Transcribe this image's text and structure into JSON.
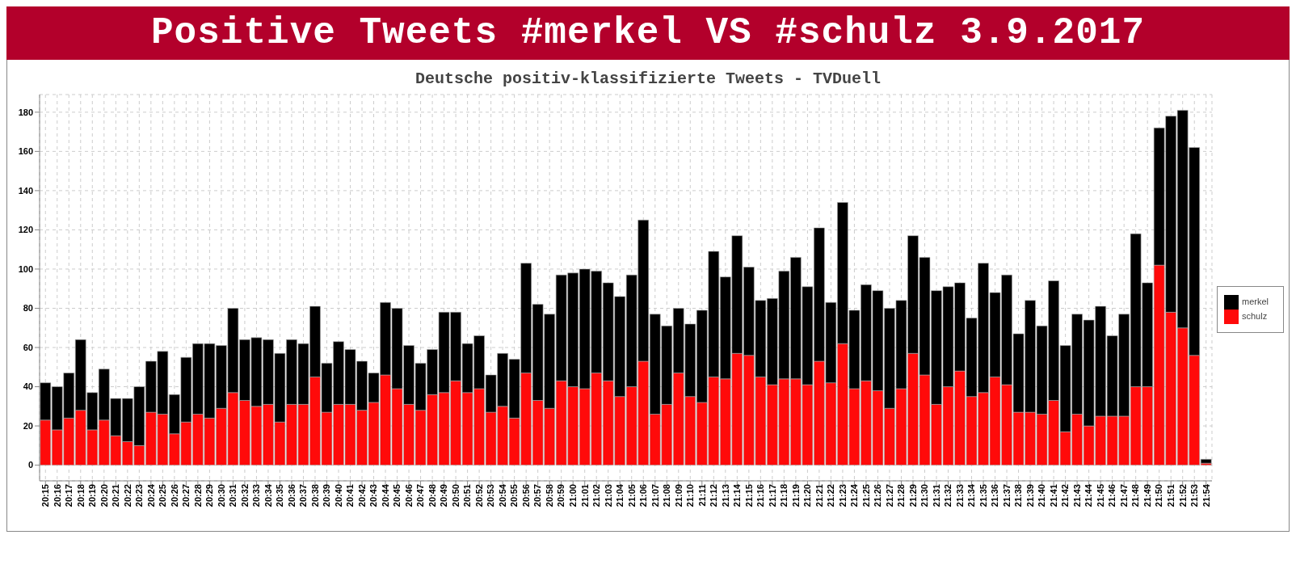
{
  "chart_data": {
    "type": "bar",
    "title": "Positive Tweets #merkel VS #schulz 3.9.2017",
    "subtitle": "Deutsche positiv-klassifizierte Tweets - TVDuell",
    "stacked": true,
    "grid": true,
    "legend": "right",
    "ylim": [
      -8,
      189
    ],
    "yticks": [
      0,
      20,
      40,
      60,
      80,
      100,
      120,
      140,
      160,
      180
    ],
    "categories": [
      "20:15",
      "20:16",
      "20:17",
      "20:18",
      "20:19",
      "20:20",
      "20:21",
      "20:22",
      "20:23",
      "20:24",
      "20:25",
      "20:26",
      "20:27",
      "20:28",
      "20:29",
      "20:30",
      "20:31",
      "20:32",
      "20:33",
      "20:34",
      "20:35",
      "20:36",
      "20:37",
      "20:38",
      "20:39",
      "20:40",
      "20:41",
      "20:42",
      "20:43",
      "20:44",
      "20:45",
      "20:46",
      "20:47",
      "20:48",
      "20:49",
      "20:50",
      "20:51",
      "20:52",
      "20:53",
      "20:54",
      "20:55",
      "20:56",
      "20:57",
      "20:58",
      "20:59",
      "21:00",
      "21:01",
      "21:02",
      "21:03",
      "21:04",
      "21:05",
      "21:06",
      "21:07",
      "21:08",
      "21:09",
      "21:10",
      "21:11",
      "21:12",
      "21:13",
      "21:14",
      "21:15",
      "21:16",
      "21:17",
      "21:18",
      "21:19",
      "21:20",
      "21:21",
      "21:22",
      "21:23",
      "21:24",
      "21:25",
      "21:26",
      "21:27",
      "21:28",
      "21:29",
      "21:30",
      "21:31",
      "21:32",
      "21:33",
      "21:34",
      "21:35",
      "21:36",
      "21:37",
      "21:38",
      "21:39",
      "21:40",
      "21:41",
      "21:42",
      "21:43",
      "21:44",
      "21:45",
      "21:46",
      "21:47",
      "21:48",
      "21:49",
      "21:50",
      "21:51",
      "21:52",
      "21:53",
      "21:54"
    ],
    "series": [
      {
        "name": "schulz",
        "color": "#ff0a0a",
        "values": [
          23,
          18,
          24,
          28,
          18,
          23,
          15,
          12,
          10,
          27,
          26,
          16,
          22,
          26,
          24,
          29,
          37,
          33,
          30,
          31,
          22,
          31,
          31,
          45,
          27,
          31,
          31,
          28,
          32,
          46,
          39,
          31,
          28,
          36,
          37,
          43,
          37,
          39,
          27,
          30,
          24,
          47,
          33,
          29,
          43,
          40,
          39,
          47,
          43,
          35,
          40,
          53,
          26,
          31,
          47,
          35,
          32,
          45,
          44,
          57,
          56,
          45,
          41,
          44,
          44,
          41,
          53,
          42,
          62,
          39,
          43,
          38,
          29,
          39,
          57,
          46,
          31,
          40,
          48,
          35,
          37,
          45,
          41,
          27,
          27,
          26,
          33,
          17,
          26,
          20,
          25,
          25,
          25,
          40,
          40,
          102,
          78,
          70,
          56,
          1
        ]
      },
      {
        "name": "merkel",
        "color": "#000000",
        "values": [
          19,
          22,
          23,
          36,
          19,
          26,
          19,
          22,
          30,
          26,
          32,
          20,
          33,
          36,
          38,
          32,
          43,
          31,
          35,
          33,
          35,
          33,
          31,
          36,
          25,
          32,
          28,
          25,
          15,
          37,
          41,
          30,
          24,
          23,
          41,
          35,
          25,
          27,
          19,
          27,
          30,
          56,
          49,
          48,
          54,
          58,
          61,
          52,
          50,
          51,
          57,
          72,
          51,
          40,
          33,
          37,
          47,
          64,
          52,
          60,
          45,
          39,
          44,
          55,
          62,
          50,
          68,
          41,
          72,
          40,
          49,
          51,
          51,
          45,
          60,
          60,
          58,
          51,
          45,
          40,
          66,
          43,
          56,
          40,
          57,
          45,
          61,
          44,
          51,
          54,
          56,
          41,
          52,
          78,
          53,
          70,
          100,
          111,
          106,
          2
        ]
      }
    ]
  }
}
